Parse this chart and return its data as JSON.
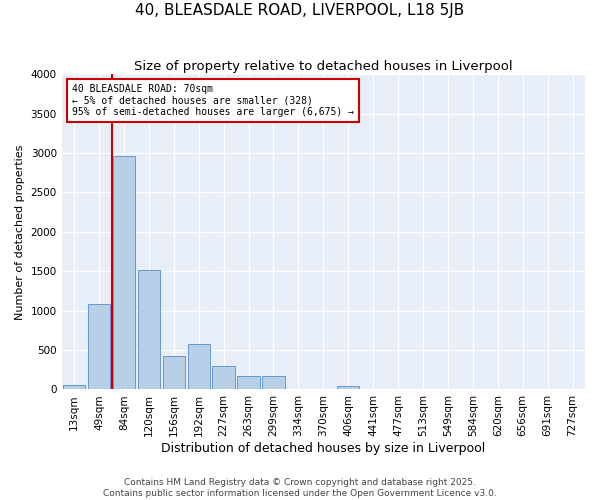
{
  "title": "40, BLEASDALE ROAD, LIVERPOOL, L18 5JB",
  "subtitle": "Size of property relative to detached houses in Liverpool",
  "xlabel": "Distribution of detached houses by size in Liverpool",
  "ylabel": "Number of detached properties",
  "categories": [
    "13sqm",
    "49sqm",
    "84sqm",
    "120sqm",
    "156sqm",
    "192sqm",
    "227sqm",
    "263sqm",
    "299sqm",
    "334sqm",
    "370sqm",
    "406sqm",
    "441sqm",
    "477sqm",
    "513sqm",
    "549sqm",
    "584sqm",
    "620sqm",
    "656sqm",
    "691sqm",
    "727sqm"
  ],
  "values": [
    60,
    1080,
    2960,
    1520,
    430,
    580,
    300,
    175,
    165,
    0,
    0,
    50,
    0,
    0,
    0,
    0,
    0,
    0,
    0,
    0,
    0
  ],
  "bar_color": "#b8cfe8",
  "bar_edge_color": "#6699cc",
  "vline_x": 1.5,
  "vline_color": "#cc0000",
  "annotation_text": "40 BLEASDALE ROAD: 70sqm\n← 5% of detached houses are smaller (328)\n95% of semi-detached houses are larger (6,675) →",
  "annotation_box_color": "#cc0000",
  "ylim": [
    0,
    4000
  ],
  "yticks": [
    0,
    500,
    1000,
    1500,
    2000,
    2500,
    3000,
    3500,
    4000
  ],
  "background_color": "#e8eef8",
  "footer1": "Contains HM Land Registry data © Crown copyright and database right 2025.",
  "footer2": "Contains public sector information licensed under the Open Government Licence v3.0.",
  "title_fontsize": 11,
  "subtitle_fontsize": 9.5,
  "xlabel_fontsize": 9,
  "ylabel_fontsize": 8,
  "tick_fontsize": 7.5,
  "footer_fontsize": 6.5
}
